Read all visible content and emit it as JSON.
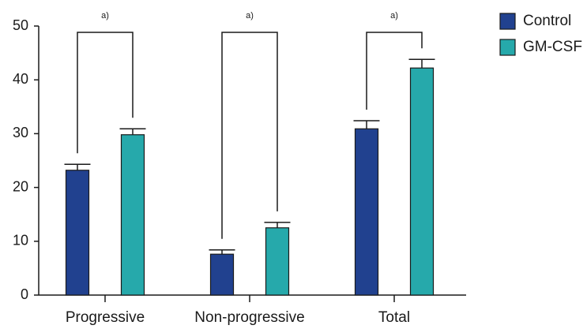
{
  "chart_data": {
    "type": "bar",
    "categories": [
      "Progressive",
      "Non-progressive",
      "Total"
    ],
    "series": [
      {
        "name": "Control",
        "color": "#21418f",
        "values": [
          23.2,
          7.6,
          30.9
        ],
        "errors": [
          1.1,
          0.8,
          1.5
        ]
      },
      {
        "name": "GM-CSF",
        "color": "#26a9ab",
        "values": [
          29.8,
          12.5,
          42.2
        ],
        "errors": [
          1.1,
          1.0,
          1.6
        ]
      }
    ],
    "annotations": [
      "a)",
      "a)",
      "a)"
    ],
    "ylim": [
      0,
      50
    ],
    "yticks": [
      0,
      10,
      20,
      30,
      40,
      50
    ],
    "legend": "top-right"
  }
}
